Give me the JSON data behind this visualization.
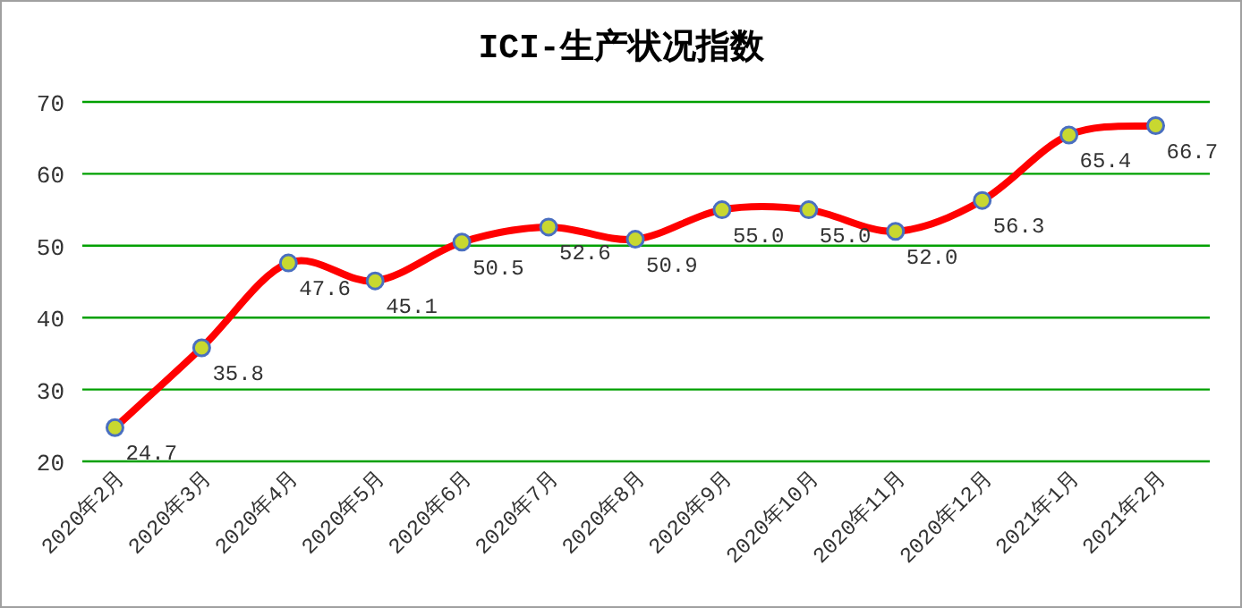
{
  "chart_data": {
    "type": "line",
    "title": "ICI-生产状况指数",
    "categories": [
      "2020年2月",
      "2020年3月",
      "2020年4月",
      "2020年5月",
      "2020年6月",
      "2020年7月",
      "2020年8月",
      "2020年9月",
      "2020年10月",
      "2020年11月",
      "2020年12月",
      "2021年1月",
      "2021年2月"
    ],
    "values": [
      24.7,
      35.8,
      47.6,
      45.1,
      50.5,
      52.6,
      50.9,
      55.0,
      55.0,
      52.0,
      56.3,
      65.4,
      66.7
    ],
    "value_labels": [
      "24.7",
      "35.8",
      "47.6",
      "45.1",
      "50.5",
      "52.6",
      "50.9",
      "55.0",
      "55.0",
      "52.0",
      "56.3",
      "65.4",
      "66.7"
    ],
    "color": "#ff0000",
    "marker": "circle",
    "line_style": "solid",
    "ylim": [
      20,
      70
    ],
    "yticks": [
      20,
      30,
      40,
      50,
      60,
      70
    ],
    "grid": "y"
  }
}
